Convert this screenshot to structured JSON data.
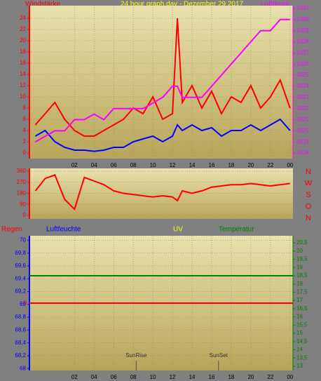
{
  "chart_data": [
    {
      "type": "line",
      "title": "24 hour graph day - Dezember 29 2017",
      "y_label": "Windstärke",
      "y2_label": "Luftdruck",
      "ytick_color": "#ff0000",
      "y2tick_color": "#ff00ff",
      "x": [
        -2,
        -1,
        0,
        1,
        2,
        3,
        4,
        5,
        6,
        7,
        8,
        9,
        10,
        11,
        12,
        12.5,
        13,
        14,
        15,
        16,
        17,
        18,
        19,
        20,
        21,
        22,
        23,
        24
      ],
      "xlim": [
        -2.6,
        24.3
      ],
      "xticks": [
        {
          "value": 2,
          "label": "02"
        },
        {
          "value": 4,
          "label": "04"
        },
        {
          "value": 6,
          "label": "06"
        },
        {
          "value": 8,
          "label": "08"
        },
        10,
        12,
        14,
        16,
        18,
        20,
        22,
        {
          "value": 24,
          "label": "00"
        }
      ],
      "ylim": [
        -1,
        26.25
      ],
      "yticks": [
        0,
        2,
        4,
        6,
        8,
        10,
        12,
        14,
        16,
        18,
        20,
        22,
        24
      ],
      "y2lim": [
        1017.5,
        1031.25
      ],
      "y2ticks": [
        1018,
        1019,
        1020,
        1021,
        1022,
        1023,
        1024,
        1025,
        1026,
        1027,
        1028,
        1029,
        1030,
        1031
      ],
      "grid": true,
      "series": [
        {
          "color": "#ff0000",
          "values": [
            5,
            7,
            9,
            6,
            4,
            3,
            3,
            4,
            5,
            6,
            8,
            7,
            10,
            6,
            7,
            24,
            9,
            12,
            8,
            11,
            7,
            10,
            9,
            12,
            8,
            10,
            13,
            8
          ]
        },
        {
          "color": "#0000ff",
          "values": [
            3,
            4,
            2,
            1,
            0.5,
            0.5,
            0.3,
            0.5,
            1,
            1,
            2,
            2.5,
            3,
            2,
            3,
            5,
            4,
            5,
            4,
            4.5,
            3,
            4,
            4,
            5,
            4,
            5,
            6,
            4
          ]
        },
        {
          "color": "#ff00ff",
          "axis": "y2",
          "values": [
            1019,
            1019.5,
            1020,
            1020,
            1021,
            1021,
            1021.5,
            1021,
            1022,
            1022,
            1022,
            1022,
            1022.5,
            1023,
            1024,
            1024,
            1023,
            1023,
            1023,
            1024,
            1025,
            1026,
            1027,
            1028,
            1029,
            1029,
            1030,
            1030
          ]
        }
      ]
    },
    {
      "type": "line",
      "ytick_color": "#ff0000",
      "compass_labels": [
        "N",
        "W",
        "S",
        "O",
        "N"
      ],
      "x": [
        -2,
        -1,
        0,
        1,
        2,
        3,
        4,
        5,
        6,
        7,
        8,
        9,
        10,
        11,
        12,
        12.5,
        13,
        14,
        15,
        16,
        17,
        18,
        19,
        20,
        21,
        22,
        23,
        24
      ],
      "xlim": [
        -2.6,
        24.3
      ],
      "ylim": [
        -29,
        383
      ],
      "yticks": [
        0,
        90,
        180,
        270,
        360
      ],
      "grid": true,
      "series": [
        {
          "color": "#ff0000",
          "values": [
            200,
            300,
            330,
            130,
            50,
            310,
            280,
            250,
            200,
            180,
            170,
            160,
            150,
            160,
            150,
            120,
            200,
            180,
            200,
            230,
            240,
            250,
            250,
            260,
            250,
            240,
            250,
            260
          ]
        }
      ]
    },
    {
      "type": "line",
      "ytick_color": "#0000ff",
      "y2tick_color": "#008000",
      "x": [
        -2.6,
        24.3
      ],
      "xlim": [
        -2.6,
        24.3
      ],
      "xticks": [
        {
          "value": 2,
          "label": "02"
        },
        {
          "value": 4,
          "label": "04"
        },
        {
          "value": 6,
          "label": "06"
        },
        {
          "value": 8,
          "label": "08"
        },
        10,
        12,
        14,
        16,
        18,
        20,
        22,
        {
          "value": 24,
          "label": "00"
        }
      ],
      "ylim": [
        67.97,
        70.07
      ],
      "yticks": [
        68,
        {
          "value": 68.2,
          "label": "68,2"
        },
        {
          "value": 68.4,
          "label": "68,4"
        },
        {
          "value": 68.6,
          "label": "68,6"
        },
        {
          "value": 68.8,
          "label": "68,8"
        },
        69,
        {
          "value": 69.2,
          "label": "69,2"
        },
        {
          "value": 69.4,
          "label": "69,4"
        },
        {
          "value": 69.6,
          "label": "69,6"
        },
        {
          "value": 69.8,
          "label": "69,8"
        },
        70
      ],
      "y2lim": [
        12.74,
        20.93
      ],
      "y2ticks": [
        13,
        {
          "value": 13.5,
          "label": "13,5"
        },
        14,
        {
          "value": 14.5,
          "label": "14,5"
        },
        15,
        {
          "value": 15.5,
          "label": "15,5"
        },
        16,
        {
          "value": 16.5,
          "label": "16,5"
        },
        17,
        {
          "value": 17.5,
          "label": "17,5"
        },
        18,
        {
          "value": 18.5,
          "label": "18,5"
        },
        19,
        {
          "value": 19.5,
          "label": "19,5"
        },
        20,
        {
          "value": 20.5,
          "label": "20,5"
        }
      ],
      "y3lim": [
        -1,
        1
      ],
      "y3ticks": [
        0
      ],
      "grid": true,
      "series": [
        {
          "name": "Regen",
          "color": "#ff0000",
          "axis": "y3",
          "values": [
            0,
            0
          ]
        },
        {
          "name": "Luftfeuchte",
          "color": "#0000ff",
          "values": [
            null,
            null
          ]
        },
        {
          "name": "UV",
          "color": "#ffff00",
          "values": [
            null,
            null
          ]
        },
        {
          "name": "Temperatur",
          "color": "#008000",
          "axis": "y2",
          "values": [
            18.5,
            18.5
          ]
        }
      ],
      "annotations": [
        {
          "text": "SunRise",
          "x": 8.3
        },
        {
          "text": "SunSet",
          "x": 16.7
        }
      ]
    }
  ]
}
